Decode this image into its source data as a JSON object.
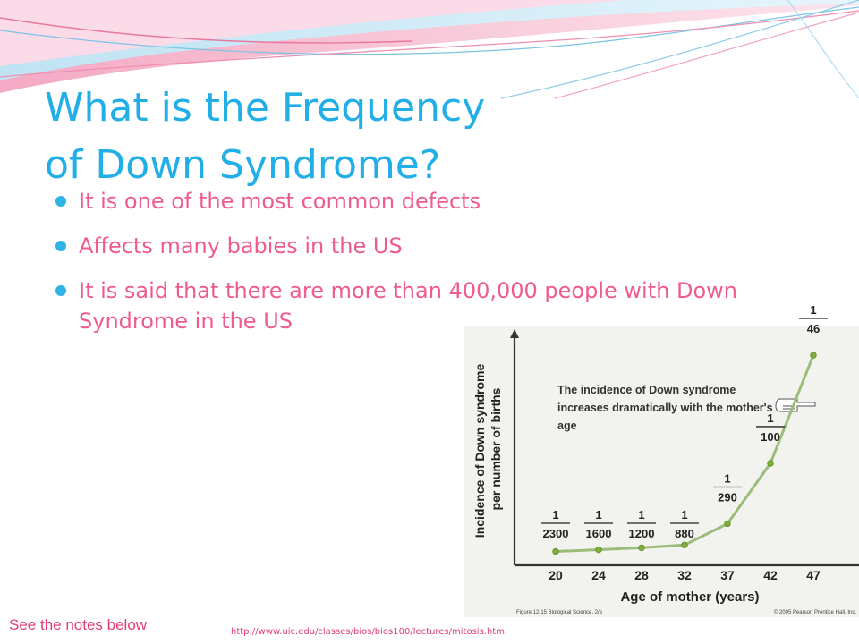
{
  "slide": {
    "title_line1": "What is the Frequency",
    "title_line2": "of Down Syndrome?",
    "bullets": [
      "It is one of the most common defects",
      "Affects many babies in the US",
      "It is said that there are more than 400,000 people with Down Syndrome in the US"
    ],
    "notes_link": "See the notes below",
    "source_url": "http://www.uic.edu/classes/bios/bios100/lectures/mitosis.htm",
    "colors": {
      "title": "#22aee6",
      "bullet_text": "#ee5b8f",
      "bullet_dot": "#2fb4e6",
      "swoosh_pink": "#ee8fb1",
      "swoosh_blue": "#9fd6ee"
    }
  },
  "chart_data": {
    "type": "line",
    "xlabel": "Age of mother (years)",
    "ylabel": "Incidence of Down syndrome per number of births",
    "annotation": "The incidence of Down syndrome increases dramatically with the mother's age",
    "x": [
      20,
      24,
      28,
      32,
      37,
      42,
      47
    ],
    "x_tick_labels": [
      "20",
      "24",
      "28",
      "32",
      "37",
      "42",
      "47"
    ],
    "labels": [
      {
        "num": "1",
        "den": "2300"
      },
      {
        "num": "1",
        "den": "1600"
      },
      {
        "num": "1",
        "den": "1200"
      },
      {
        "num": "1",
        "den": "880"
      },
      {
        "num": "1",
        "den": "290"
      },
      {
        "num": "1",
        "den": "100"
      },
      {
        "num": "1",
        "den": "46"
      }
    ],
    "y_per_1000_births": [
      0.435,
      0.625,
      0.833,
      1.136,
      3.448,
      10.0,
      21.739
    ],
    "caption_left": "Figure 12-15  Biological Science, 2/e",
    "caption_right": "© 2005 Pearson Prentice Hall, Inc.",
    "line_color": "#9bbd7a",
    "point_color": "#7fae3a",
    "grid": false,
    "legend": "none"
  }
}
